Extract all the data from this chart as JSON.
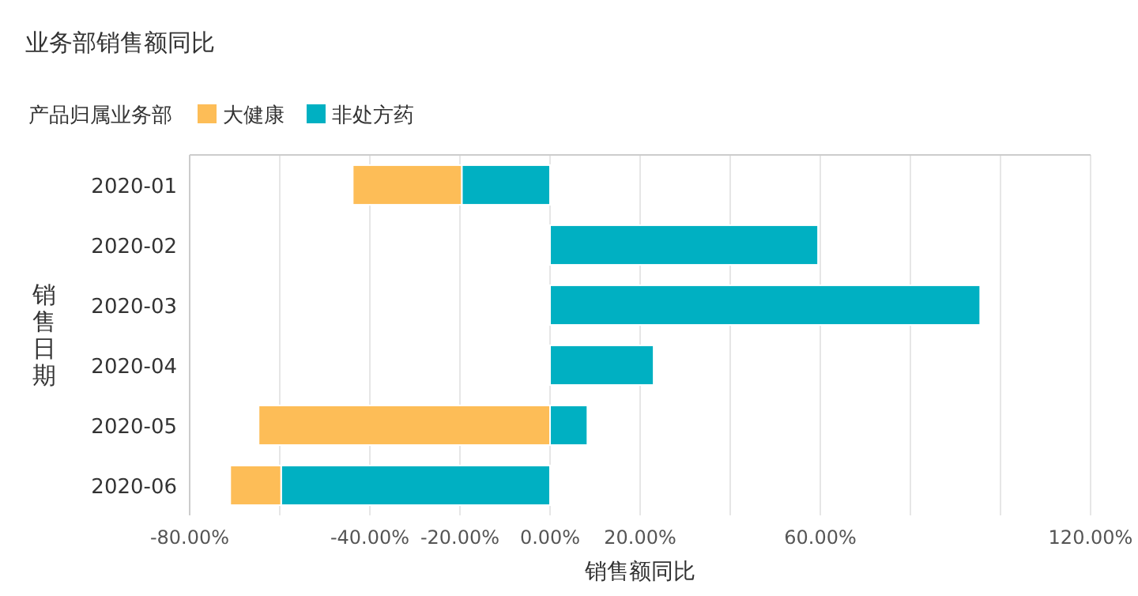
{
  "chart_data": {
    "type": "bar",
    "orientation": "horizontal",
    "stacked": true,
    "title": "业务部销售额同比",
    "legend_title": "产品归属业务部",
    "xlabel": "销售额同比",
    "ylabel": "销售日期",
    "categories": [
      "2020-01",
      "2020-02",
      "2020-03",
      "2020-04",
      "2020-05",
      "2020-06"
    ],
    "series": [
      {
        "name": "非处方药",
        "color": "#00b0c2",
        "values": [
          -19.6,
          59.5,
          95.5,
          23,
          8.3,
          -59.7
        ]
      },
      {
        "name": "大健康",
        "color": "#fdbd57",
        "values": [
          -24.2,
          null,
          null,
          null,
          -64.7,
          -11.3
        ]
      }
    ],
    "xlim": [
      -80,
      120
    ],
    "xticks": [
      {
        "value": -80,
        "label": "-80.00%"
      },
      {
        "value": -60,
        "label": null
      },
      {
        "value": -40,
        "label": "-40.00%"
      },
      {
        "value": -20,
        "label": "-20.00%"
      },
      {
        "value": 0,
        "label": "0.00%"
      },
      {
        "value": 20,
        "label": "20.00%"
      },
      {
        "value": 40,
        "label": null
      },
      {
        "value": 60,
        "label": "60.00%"
      },
      {
        "value": 80,
        "label": null
      },
      {
        "value": 100,
        "label": null
      },
      {
        "value": 120,
        "label": "120.00%"
      }
    ],
    "grid": "x",
    "legend": "top left"
  }
}
